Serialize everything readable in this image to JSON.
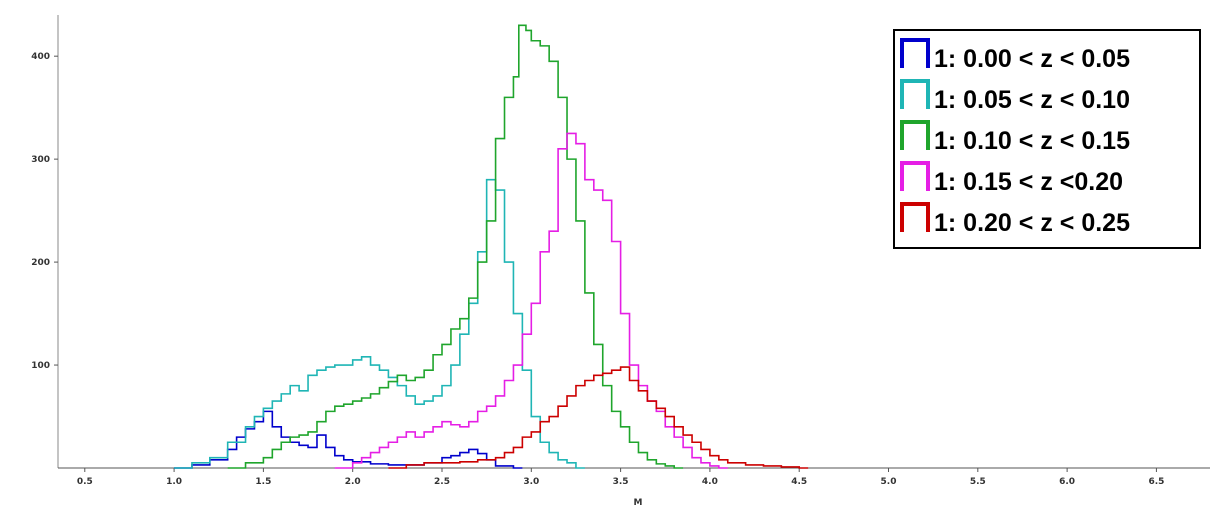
{
  "chart_data": {
    "type": "histogram-step",
    "xlabel": "M",
    "ylabel": "",
    "xlim": [
      0.35,
      6.8
    ],
    "ylim": [
      0,
      440
    ],
    "bin_width": 0.05,
    "x_ticks": [
      "0.5",
      "1.0",
      "1.5",
      "2.0",
      "2.5",
      "3.0",
      "3.5",
      "4.0",
      "4.5",
      "5.0",
      "5.5",
      "6.0",
      "6.5"
    ],
    "y_ticks": [
      "100",
      "200",
      "300",
      "400"
    ],
    "legend_position": "top-right",
    "series": [
      {
        "name": "1: 0.00 < z < 0.05",
        "color": "#0000cc",
        "points": [
          [
            1.0,
            0
          ],
          [
            1.1,
            3
          ],
          [
            1.2,
            8
          ],
          [
            1.3,
            18
          ],
          [
            1.35,
            30
          ],
          [
            1.4,
            38
          ],
          [
            1.45,
            45
          ],
          [
            1.5,
            55
          ],
          [
            1.55,
            40
          ],
          [
            1.6,
            30
          ],
          [
            1.65,
            25
          ],
          [
            1.7,
            22
          ],
          [
            1.75,
            20
          ],
          [
            1.8,
            32
          ],
          [
            1.85,
            20
          ],
          [
            1.9,
            12
          ],
          [
            1.95,
            8
          ],
          [
            2.0,
            6
          ],
          [
            2.1,
            4
          ],
          [
            2.2,
            3
          ],
          [
            2.3,
            3
          ],
          [
            2.4,
            5
          ],
          [
            2.5,
            10
          ],
          [
            2.55,
            12
          ],
          [
            2.6,
            15
          ],
          [
            2.65,
            18
          ],
          [
            2.7,
            14
          ],
          [
            2.75,
            8
          ],
          [
            2.8,
            2
          ],
          [
            2.9,
            0
          ]
        ]
      },
      {
        "name": "1: 0.05 < z < 0.10",
        "color": "#1fb5b5",
        "points": [
          [
            1.0,
            0
          ],
          [
            1.1,
            5
          ],
          [
            1.2,
            10
          ],
          [
            1.3,
            25
          ],
          [
            1.4,
            40
          ],
          [
            1.45,
            50
          ],
          [
            1.5,
            58
          ],
          [
            1.55,
            65
          ],
          [
            1.6,
            72
          ],
          [
            1.65,
            80
          ],
          [
            1.7,
            75
          ],
          [
            1.75,
            90
          ],
          [
            1.8,
            95
          ],
          [
            1.85,
            98
          ],
          [
            1.9,
            100
          ],
          [
            1.95,
            100
          ],
          [
            2.0,
            105
          ],
          [
            2.05,
            108
          ],
          [
            2.1,
            100
          ],
          [
            2.15,
            95
          ],
          [
            2.2,
            88
          ],
          [
            2.25,
            80
          ],
          [
            2.3,
            70
          ],
          [
            2.35,
            62
          ],
          [
            2.4,
            65
          ],
          [
            2.45,
            70
          ],
          [
            2.5,
            80
          ],
          [
            2.55,
            100
          ],
          [
            2.6,
            130
          ],
          [
            2.65,
            160
          ],
          [
            2.7,
            210
          ],
          [
            2.75,
            280
          ],
          [
            2.8,
            270
          ],
          [
            2.85,
            200
          ],
          [
            2.9,
            150
          ],
          [
            2.95,
            95
          ],
          [
            3.0,
            50
          ],
          [
            3.05,
            25
          ],
          [
            3.1,
            15
          ],
          [
            3.15,
            8
          ],
          [
            3.2,
            5
          ],
          [
            3.25,
            0
          ]
        ]
      },
      {
        "name": "1: 0.10 < z < 0.15",
        "color": "#1fa52c",
        "points": [
          [
            1.3,
            0
          ],
          [
            1.4,
            5
          ],
          [
            1.5,
            10
          ],
          [
            1.55,
            18
          ],
          [
            1.6,
            25
          ],
          [
            1.65,
            30
          ],
          [
            1.7,
            32
          ],
          [
            1.75,
            35
          ],
          [
            1.8,
            45
          ],
          [
            1.85,
            55
          ],
          [
            1.9,
            60
          ],
          [
            1.95,
            62
          ],
          [
            2.0,
            65
          ],
          [
            2.05,
            68
          ],
          [
            2.1,
            72
          ],
          [
            2.15,
            78
          ],
          [
            2.2,
            84
          ],
          [
            2.25,
            90
          ],
          [
            2.3,
            85
          ],
          [
            2.35,
            88
          ],
          [
            2.4,
            95
          ],
          [
            2.45,
            110
          ],
          [
            2.5,
            120
          ],
          [
            2.55,
            135
          ],
          [
            2.6,
            145
          ],
          [
            2.65,
            165
          ],
          [
            2.7,
            200
          ],
          [
            2.75,
            240
          ],
          [
            2.8,
            320
          ],
          [
            2.85,
            360
          ],
          [
            2.9,
            380
          ],
          [
            2.93,
            430
          ],
          [
            2.97,
            425
          ],
          [
            3.0,
            415
          ],
          [
            3.05,
            410
          ],
          [
            3.1,
            395
          ],
          [
            3.15,
            360
          ],
          [
            3.2,
            300
          ],
          [
            3.25,
            240
          ],
          [
            3.3,
            170
          ],
          [
            3.35,
            120
          ],
          [
            3.4,
            80
          ],
          [
            3.45,
            55
          ],
          [
            3.5,
            40
          ],
          [
            3.55,
            25
          ],
          [
            3.6,
            15
          ],
          [
            3.65,
            8
          ],
          [
            3.7,
            4
          ],
          [
            3.75,
            2
          ],
          [
            3.8,
            0
          ]
        ]
      },
      {
        "name": "1: 0.15 < z <0.20",
        "color": "#e51ee5",
        "points": [
          [
            1.9,
            0
          ],
          [
            2.0,
            5
          ],
          [
            2.05,
            10
          ],
          [
            2.1,
            15
          ],
          [
            2.15,
            20
          ],
          [
            2.2,
            25
          ],
          [
            2.25,
            30
          ],
          [
            2.3,
            35
          ],
          [
            2.35,
            30
          ],
          [
            2.4,
            35
          ],
          [
            2.45,
            40
          ],
          [
            2.5,
            45
          ],
          [
            2.55,
            42
          ],
          [
            2.6,
            40
          ],
          [
            2.65,
            45
          ],
          [
            2.7,
            55
          ],
          [
            2.75,
            60
          ],
          [
            2.8,
            70
          ],
          [
            2.85,
            85
          ],
          [
            2.9,
            100
          ],
          [
            2.95,
            130
          ],
          [
            3.0,
            160
          ],
          [
            3.05,
            210
          ],
          [
            3.1,
            230
          ],
          [
            3.15,
            310
          ],
          [
            3.2,
            325
          ],
          [
            3.25,
            315
          ],
          [
            3.3,
            280
          ],
          [
            3.35,
            270
          ],
          [
            3.4,
            260
          ],
          [
            3.45,
            220
          ],
          [
            3.5,
            150
          ],
          [
            3.55,
            100
          ],
          [
            3.6,
            80
          ],
          [
            3.65,
            65
          ],
          [
            3.7,
            55
          ],
          [
            3.75,
            40
          ],
          [
            3.8,
            30
          ],
          [
            3.85,
            20
          ],
          [
            3.9,
            10
          ],
          [
            3.95,
            5
          ],
          [
            4.0,
            2
          ],
          [
            4.05,
            0
          ]
        ]
      },
      {
        "name": "1: 0.20 < z < 0.25",
        "color": "#cc0000",
        "points": [
          [
            2.2,
            0
          ],
          [
            2.3,
            3
          ],
          [
            2.4,
            5
          ],
          [
            2.5,
            5
          ],
          [
            2.6,
            6
          ],
          [
            2.7,
            8
          ],
          [
            2.8,
            10
          ],
          [
            2.85,
            15
          ],
          [
            2.9,
            20
          ],
          [
            2.95,
            30
          ],
          [
            3.0,
            35
          ],
          [
            3.05,
            45
          ],
          [
            3.1,
            50
          ],
          [
            3.15,
            60
          ],
          [
            3.2,
            70
          ],
          [
            3.25,
            80
          ],
          [
            3.3,
            85
          ],
          [
            3.35,
            90
          ],
          [
            3.4,
            92
          ],
          [
            3.45,
            95
          ],
          [
            3.5,
            98
          ],
          [
            3.55,
            85
          ],
          [
            3.6,
            75
          ],
          [
            3.65,
            65
          ],
          [
            3.7,
            58
          ],
          [
            3.75,
            50
          ],
          [
            3.8,
            40
          ],
          [
            3.85,
            32
          ],
          [
            3.9,
            25
          ],
          [
            3.95,
            18
          ],
          [
            4.0,
            12
          ],
          [
            4.05,
            8
          ],
          [
            4.1,
            5
          ],
          [
            4.2,
            3
          ],
          [
            4.3,
            2
          ],
          [
            4.4,
            1
          ],
          [
            4.5,
            0
          ]
        ]
      }
    ]
  }
}
